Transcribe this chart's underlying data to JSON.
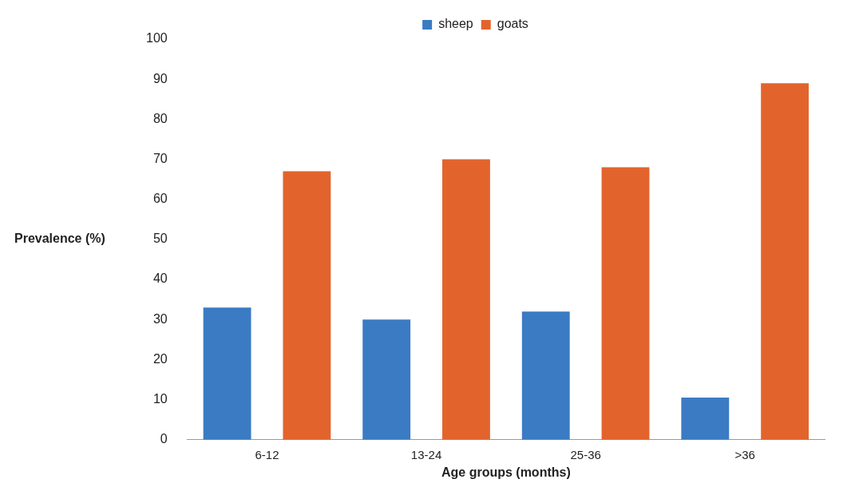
{
  "chart_data": {
    "type": "bar",
    "xlabel": "Age groups (months)",
    "ylabel": "Prevalence (%)",
    "categories": [
      "6-12",
      "13-24",
      "25-36",
      ">36"
    ],
    "series": [
      {
        "name": "sheep",
        "color": "#3b7bc4",
        "values": [
          33,
          30,
          32,
          10.5
        ]
      },
      {
        "name": "goats",
        "color": "#e2642c",
        "values": [
          67,
          70,
          68,
          89
        ]
      }
    ],
    "ylim": [
      0,
      100
    ],
    "yticks": [
      0,
      10,
      20,
      30,
      40,
      50,
      60,
      70,
      80,
      90,
      100
    ],
    "grid": false,
    "legend": "top"
  }
}
